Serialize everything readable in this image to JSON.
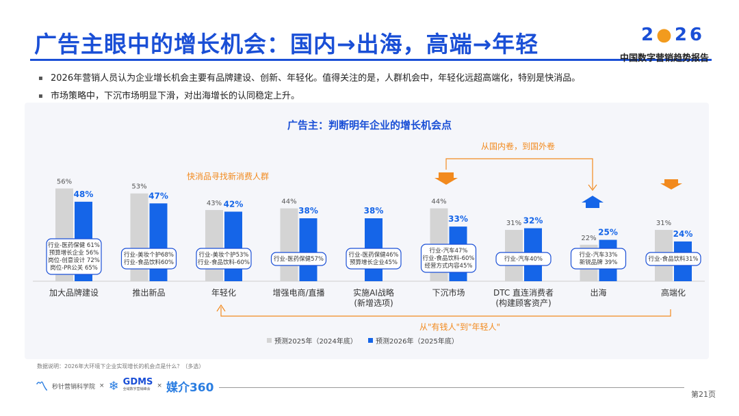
{
  "header": {
    "title": "广告主眼中的增长机会：国内→出海，高端→年轻",
    "logo_year": "2026",
    "logo_subtitle": "中国数字营销趋势报告"
  },
  "bullets": [
    "2026年营销人员认为企业增长机会主要有品牌建设、创新、年轻化。值得关注的是，人群机会中，年轻化远超高端化，特别是快消品。",
    "市场策略中，下沉市场明显下滑，对出海增长的认同稳定上升。"
  ],
  "chart_data": {
    "type": "bar",
    "title": "广告主：判断明年企业的增长机会点",
    "categories": [
      "加大品牌建设",
      "推出新品",
      "年轻化",
      "增强电商/直播",
      "实施AI战略\n(新增选项)",
      "下沉市场",
      "DTC 直连消费者\n(构建顾客资产)",
      "出海",
      "高端化"
    ],
    "series": [
      {
        "name": "预测2025年（2024年底）",
        "color": "#d4d4d4",
        "values": [
          56,
          53,
          43,
          44,
          null,
          44,
          31,
          22,
          31
        ]
      },
      {
        "name": "预测2026年（2025年底）",
        "color": "#1565e8",
        "values": [
          48,
          47,
          42,
          38,
          38,
          33,
          32,
          25,
          24
        ]
      }
    ],
    "value_labels": [
      [
        "56%",
        "53%",
        "43%",
        "44%",
        "",
        "44%",
        "31%",
        "22%",
        "31%"
      ],
      [
        "48%",
        "47%",
        "42%",
        "38%",
        "38%",
        "33%",
        "32%",
        "25%",
        "24%"
      ]
    ],
    "industry_notes": [
      [
        "行业-医药保健 61%",
        "预算增长企业 56%",
        "岗位-创意设计 72%",
        "岗位-PR公关 65%"
      ],
      [
        "行业-美妆个护68%",
        "行业-食品饮料60%"
      ],
      [
        "行业-美妆个护53%",
        "行业-食品饮料-60%"
      ],
      [
        "行业-医药保健57%"
      ],
      [
        "行业-医药保健46%",
        "预算增长企业45%"
      ],
      [
        "行业-汽车47%",
        "行业-食品饮料-60%",
        "经营方式内容45%"
      ],
      [
        "行业-汽车40%"
      ],
      [
        "行业-汽车33%",
        "新锐品牌 39%"
      ],
      [
        "行业-食品饮料31%"
      ]
    ],
    "ylim": [
      0,
      70
    ],
    "annotations": {
      "fmcg": "快消品寻找新消费人群",
      "domestic_to_overseas": "从国内卷，到国外卷",
      "rich_to_young": "从\"有钱人\"到\"年轻人\""
    },
    "arrow_colors": {
      "orange": "#f28a1e",
      "blue": "#1565e8"
    },
    "legend_position": "bottom-center"
  },
  "footnote": "数据说明：2026年大环境下企业实现增长的机会点是什么？（多选）",
  "footer": {
    "logo1": "秒针营销科学院",
    "logo_gdms": "GDMS",
    "logo_gdms_sub": "全域数字营销峰会",
    "logo_media": "媒介360",
    "sep": "×",
    "page": "第21页"
  }
}
